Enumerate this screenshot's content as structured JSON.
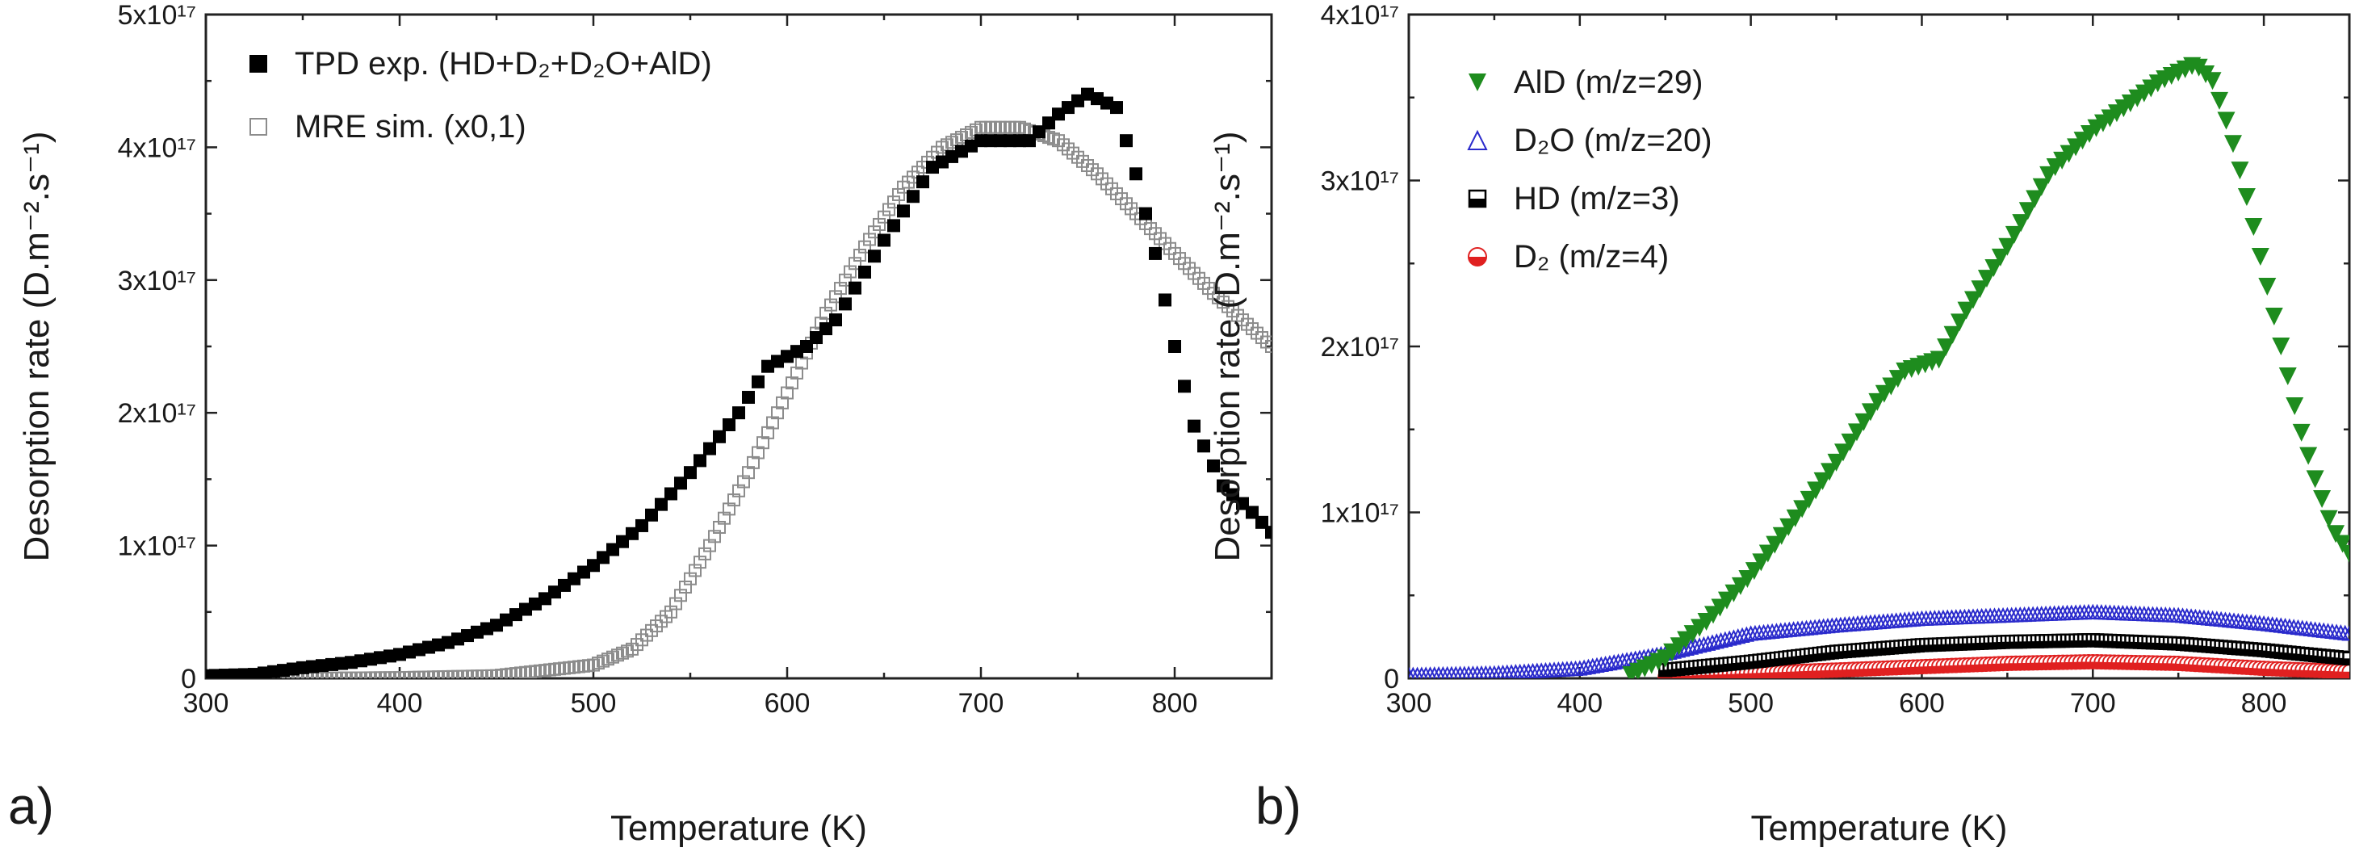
{
  "chart_data": [
    {
      "panel_label": "a)",
      "type": "scatter",
      "xlabel": "Temperature (K)",
      "ylabel": "Desorption rate (D.m⁻².s⁻¹)",
      "xlim": [
        300,
        850
      ],
      "ylim": [
        0,
        5e+17
      ],
      "x_ticks": [
        300,
        400,
        500,
        600,
        700,
        800
      ],
      "y_ticks": [
        {
          "value": 0,
          "label": "0"
        },
        {
          "value": 1e+17,
          "label": "1x10¹⁷"
        },
        {
          "value": 2e+17,
          "label": "2x10¹⁷"
        },
        {
          "value": 3e+17,
          "label": "3x10¹⁷"
        },
        {
          "value": 4e+17,
          "label": "4x10¹⁷"
        },
        {
          "value": 5e+17,
          "label": "5x10¹⁷"
        }
      ],
      "legend_position": "top-left",
      "series": [
        {
          "name": "TPD exp. (HD+D₂+D₂O+AlD)",
          "marker": "filled-square",
          "color": "#000000",
          "x": [
            300,
            325,
            350,
            375,
            400,
            425,
            450,
            475,
            500,
            525,
            550,
            575,
            590,
            610,
            625,
            650,
            675,
            700,
            725,
            740,
            755,
            770,
            780,
            790,
            800,
            810,
            825,
            840,
            850
          ],
          "y": [
            2000000000000000.0,
            3000000000000000.0,
            8000000000000000.0,
            1.2e+16,
            1.8e+16,
            2.7e+16,
            4e+16,
            6e+16,
            8.5e+16,
            1.15e+17,
            1.55e+17,
            2e+17,
            2.35e+17,
            2.5e+17,
            2.7e+17,
            3.3e+17,
            3.85e+17,
            4.05e+17,
            4.05e+17,
            4.25e+17,
            4.4e+17,
            4.3e+17,
            3.8e+17,
            3.2e+17,
            2.5e+17,
            1.9e+17,
            1.45e+17,
            1.25e+17,
            1.1e+17
          ]
        },
        {
          "name": "MRE sim. (x0,1)",
          "marker": "open-square",
          "color": "#8c8c8c",
          "x": [
            300,
            350,
            400,
            450,
            500,
            520,
            540,
            560,
            580,
            600,
            620,
            640,
            660,
            680,
            700,
            720,
            740,
            760,
            780,
            800,
            820,
            850
          ],
          "y": [
            0.0,
            0.0,
            500000000000000.0,
            2000000000000000.0,
            1e+16,
            2.2e+16,
            5e+16,
            1e+17,
            1.55e+17,
            2.15e+17,
            2.75e+17,
            3.25e+17,
            3.7e+17,
            4e+17,
            4.15e+17,
            4.15e+17,
            4.05e+17,
            3.8e+17,
            3.5e+17,
            3.2e+17,
            2.9e+17,
            2.5e+17
          ]
        }
      ]
    },
    {
      "panel_label": "b)",
      "type": "scatter",
      "xlabel": "Temperature (K)",
      "ylabel": "Desorption rate (D.m⁻².s⁻¹)",
      "xlim": [
        300,
        850
      ],
      "ylim": [
        0,
        4e+17
      ],
      "x_ticks": [
        300,
        400,
        500,
        600,
        700,
        800
      ],
      "y_ticks": [
        {
          "value": 0,
          "label": "0"
        },
        {
          "value": 1e+17,
          "label": "1x10¹⁷"
        },
        {
          "value": 2e+17,
          "label": "2x10¹⁷"
        },
        {
          "value": 3e+17,
          "label": "3x10¹⁷"
        },
        {
          "value": 4e+17,
          "label": "4x10¹⁷"
        }
      ],
      "legend_position": "top-left",
      "series": [
        {
          "name": "AlD",
          "legend_label": "AlD  (m/z=29)",
          "marker": "filled-triangle-down",
          "color": "#1e8c1e",
          "x": [
            430,
            450,
            475,
            500,
            525,
            550,
            575,
            590,
            610,
            625,
            650,
            675,
            700,
            720,
            740,
            760,
            770,
            780,
            790,
            800,
            810,
            820,
            830,
            840,
            850
          ],
          "y": [
            2000000000000000.0,
            1.2e+16,
            3.5e+16,
            6.2e+16,
            9.5e+16,
            1.3e+17,
            1.68e+17,
            1.85e+17,
            1.92e+17,
            2.2e+17,
            2.6e+17,
            3.05e+17,
            3.3e+17,
            3.45e+17,
            3.6e+17,
            3.7e+17,
            3.6e+17,
            3.3e+17,
            2.9e+17,
            2.45e+17,
            2e+17,
            1.55e+17,
            1.2e+17,
            9e+16,
            7.5e+16
          ]
        },
        {
          "name": "D₂O",
          "legend_label": "D₂O (m/z=20)",
          "marker": "open-triangle-up",
          "color": "#2b2bcc",
          "x": [
            300,
            350,
            400,
            450,
            500,
            550,
            600,
            650,
            700,
            750,
            800,
            850
          ],
          "y": [
            2000000000000000.0,
            3000000000000000.0,
            6000000000000000.0,
            1.5e+16,
            2.7e+16,
            3.2e+16,
            3.6e+16,
            3.8e+16,
            4e+16,
            3.8e+16,
            3.3e+16,
            2.7e+16
          ]
        },
        {
          "name": "HD",
          "legend_label": "HD  (m/z=3)",
          "marker": "half-square",
          "color": "#000000",
          "x": [
            450,
            500,
            550,
            600,
            650,
            700,
            750,
            800,
            850
          ],
          "y": [
            5000000000000000.0,
            1e+16,
            1.6e+16,
            2e+16,
            2.2e+16,
            2.3e+16,
            2.1e+16,
            1.7e+16,
            1.2e+16
          ]
        },
        {
          "name": "D₂",
          "legend_label": "D₂   (m/z=4)",
          "marker": "half-circle",
          "color": "#e02020",
          "x": [
            450,
            500,
            550,
            600,
            650,
            700,
            750,
            800,
            850
          ],
          "y": [
            1000000000000000.0,
            3000000000000000.0,
            5000000000000000.0,
            7000000000000000.0,
            9000000000000000.0,
            1e+16,
            9000000000000000.0,
            6000000000000000.0,
            4000000000000000.0
          ]
        }
      ]
    }
  ]
}
